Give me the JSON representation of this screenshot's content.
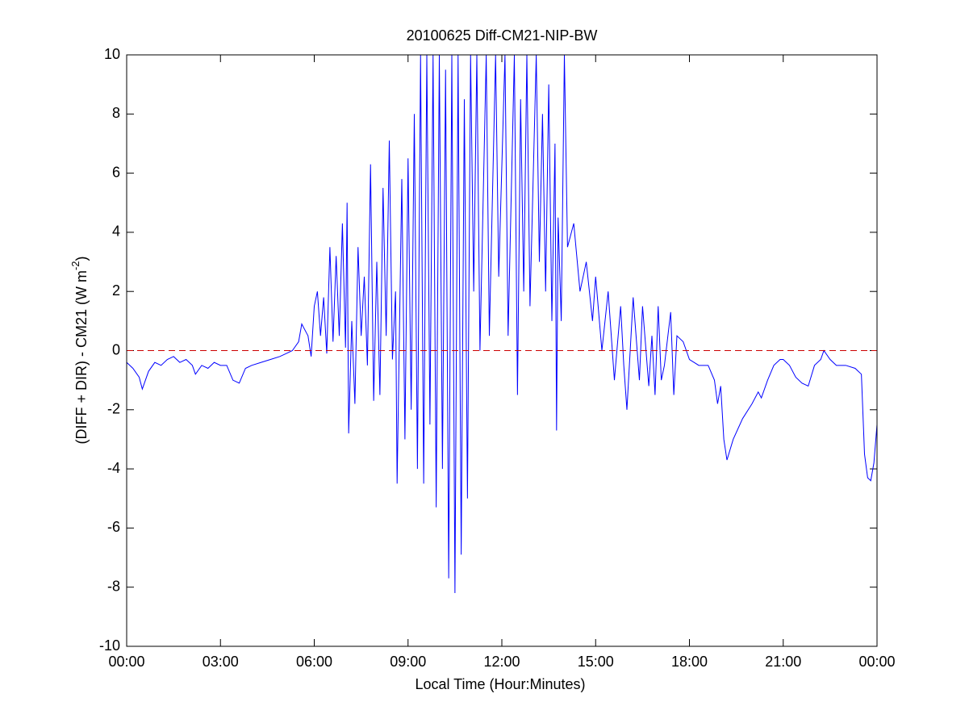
{
  "chart_data": {
    "type": "line",
    "title": "20100625 Diff-CM21-NIP-BW",
    "xlabel": "Local Time (Hour:Minutes)",
    "ylabel": {
      "text": "(DIFF + DIR) - CM21 (W m",
      "superscript": "-2",
      "close": ")"
    },
    "xlim": [
      0,
      24
    ],
    "xticks": [
      {
        "value": 0,
        "label": "00:00"
      },
      {
        "value": 3,
        "label": "03:00"
      },
      {
        "value": 6,
        "label": "06:00"
      },
      {
        "value": 9,
        "label": "09:00"
      },
      {
        "value": 12,
        "label": "12:00"
      },
      {
        "value": 15,
        "label": "15:00"
      },
      {
        "value": 18,
        "label": "18:00"
      },
      {
        "value": 21,
        "label": "21:00"
      },
      {
        "value": 24,
        "label": "00:00"
      }
    ],
    "ylim": [
      -10,
      10
    ],
    "yticks": [
      -10,
      -8,
      -6,
      -4,
      -2,
      0,
      2,
      4,
      6,
      8,
      10
    ],
    "reference_line": {
      "value": 0,
      "color": "#cc0000"
    },
    "series": [
      {
        "color": "#0000ff",
        "x": [
          0,
          0.2,
          0.4,
          0.5,
          0.7,
          0.9,
          1.1,
          1.3,
          1.5,
          1.7,
          1.9,
          2.1,
          2.2,
          2.4,
          2.6,
          2.8,
          3.0,
          3.2,
          3.4,
          3.6,
          3.8,
          4.0,
          4.3,
          4.6,
          4.9,
          5.1,
          5.3,
          5.5,
          5.6,
          5.8,
          5.9,
          6.0,
          6.1,
          6.2,
          6.3,
          6.4,
          6.5,
          6.6,
          6.7,
          6.8,
          6.9,
          7.0,
          7.05,
          7.1,
          7.2,
          7.3,
          7.4,
          7.5,
          7.6,
          7.7,
          7.8,
          7.9,
          8.0,
          8.1,
          8.2,
          8.3,
          8.4,
          8.5,
          8.6,
          8.65,
          8.8,
          8.9,
          9.0,
          9.1,
          9.2,
          9.3,
          9.4,
          9.5,
          9.6,
          9.7,
          9.8,
          9.9,
          10.0,
          10.1,
          10.2,
          10.3,
          10.4,
          10.5,
          10.6,
          10.7,
          10.8,
          10.9,
          11.0,
          11.1,
          11.2,
          11.3,
          11.5,
          11.6,
          11.8,
          11.9,
          12.1,
          12.2,
          12.4,
          12.5,
          12.6,
          12.7,
          12.8,
          12.9,
          13.1,
          13.2,
          13.3,
          13.4,
          13.5,
          13.6,
          13.7,
          13.75,
          13.8,
          13.9,
          14.0,
          14.1,
          14.3,
          14.5,
          14.7,
          14.9,
          15.0,
          15.2,
          15.4,
          15.6,
          15.8,
          15.9,
          16.0,
          16.2,
          16.4,
          16.5,
          16.7,
          16.8,
          16.9,
          17.0,
          17.1,
          17.2,
          17.4,
          17.5,
          17.6,
          17.8,
          18.0,
          18.3,
          18.6,
          18.8,
          18.9,
          19.0,
          19.1,
          19.2,
          19.4,
          19.7,
          20.0,
          20.2,
          20.3,
          20.5,
          20.7,
          20.9,
          21.0,
          21.2,
          21.4,
          21.6,
          21.8,
          22.0,
          22.2,
          22.3,
          22.5,
          22.7,
          23.0,
          23.3,
          23.5,
          23.6,
          23.7,
          23.8,
          23.9,
          24.0
        ],
        "values": [
          -0.4,
          -0.6,
          -0.9,
          -1.3,
          -0.7,
          -0.4,
          -0.5,
          -0.3,
          -0.2,
          -0.4,
          -0.3,
          -0.5,
          -0.8,
          -0.5,
          -0.6,
          -0.4,
          -0.5,
          -0.5,
          -1.0,
          -1.1,
          -0.6,
          -0.5,
          -0.4,
          -0.3,
          -0.2,
          -0.1,
          0.0,
          0.3,
          0.9,
          0.5,
          -0.2,
          1.5,
          2.0,
          0.5,
          1.8,
          -0.1,
          3.5,
          0.3,
          3.2,
          0.5,
          4.3,
          0.1,
          5.0,
          -2.8,
          1.0,
          -1.8,
          3.5,
          0.5,
          2.5,
          -0.5,
          6.3,
          -1.7,
          3.0,
          -1.5,
          5.5,
          0.5,
          7.1,
          -0.3,
          2.0,
          -4.5,
          5.8,
          -3.0,
          6.5,
          -2.0,
          8.0,
          -4.0,
          10,
          -4.5,
          10,
          -2.5,
          10,
          -5.3,
          10,
          -4.0,
          9.5,
          -7.7,
          10,
          -8.2,
          10,
          -6.9,
          8.5,
          -5.0,
          10,
          2.0,
          10,
          0.0,
          10,
          0.5,
          10,
          2.5,
          10,
          0.5,
          10,
          -1.5,
          8.5,
          2.0,
          10,
          1.5,
          10,
          3.0,
          8.0,
          2.0,
          9.0,
          1.0,
          7.0,
          -2.7,
          4.5,
          1.0,
          10,
          3.5,
          4.3,
          2.0,
          3.0,
          1.0,
          2.5,
          0.0,
          2.0,
          -1.0,
          1.5,
          -0.5,
          -2.0,
          1.8,
          -1.0,
          1.5,
          -1.2,
          0.5,
          -1.5,
          1.5,
          -1.0,
          -0.5,
          1.3,
          -1.5,
          0.5,
          0.3,
          -0.3,
          -0.5,
          -0.5,
          -1.0,
          -1.8,
          -1.2,
          -3.0,
          -3.7,
          -3.0,
          -2.3,
          -1.8,
          -1.4,
          -1.6,
          -1.0,
          -0.5,
          -0.3,
          -0.3,
          -0.5,
          -0.9,
          -1.1,
          -1.2,
          -0.5,
          -0.3,
          0.0,
          -0.3,
          -0.5,
          -0.5,
          -0.6,
          -0.8,
          -3.5,
          -4.3,
          -4.4,
          -3.8,
          -2.5
        ]
      }
    ]
  }
}
